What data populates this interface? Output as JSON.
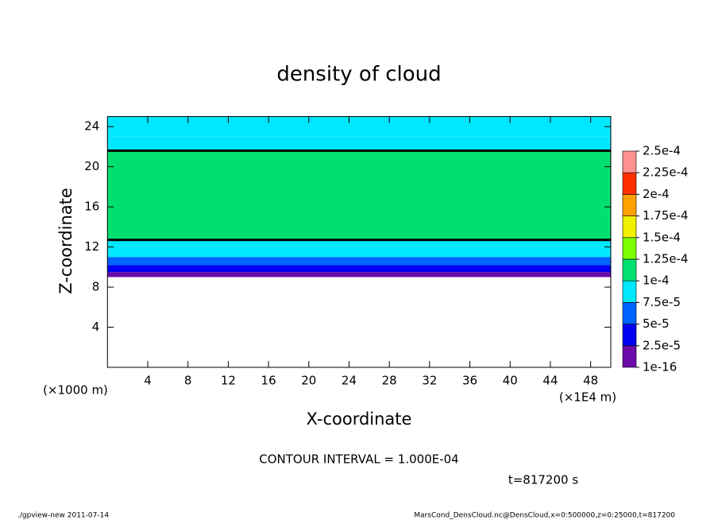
{
  "chart_data": {
    "type": "contour",
    "title": "density of cloud",
    "xlabel": "X-coordinate",
    "ylabel": "Z-coordinate",
    "x_unit": "(×1E4 m)",
    "y_unit": "(×1000 m)",
    "xlim": [
      0,
      50
    ],
    "xticks": [
      4,
      8,
      12,
      16,
      20,
      24,
      28,
      32,
      36,
      40,
      44,
      48
    ],
    "ylim": [
      0,
      25
    ],
    "yticks": [
      4,
      8,
      12,
      16,
      20,
      24
    ],
    "z_bins": [
      9,
      9.5,
      10.2,
      11,
      12,
      12.7,
      21.6,
      23,
      25
    ],
    "values": [
      1e-06,
      3e-05,
      6e-05,
      8e-05,
      9.5e-05,
      0.00011,
      9e-05,
      8e-05
    ],
    "contour_interval": {
      "value": 0.0001,
      "label": "CONTOUR INTERVAL = 1.000E-04"
    },
    "colorbar": {
      "ticks": [
        {
          "value": 1e-16,
          "label": "1e-16"
        },
        {
          "value": 2.5e-05,
          "label": "2.5e-5"
        },
        {
          "value": 5e-05,
          "label": "5e-5"
        },
        {
          "value": 7.5e-05,
          "label": "7.5e-5"
        },
        {
          "value": 0.0001,
          "label": "1e-4"
        },
        {
          "value": 0.000125,
          "label": "1.25e-4"
        },
        {
          "value": 0.00015,
          "label": "1.5e-4"
        },
        {
          "value": 0.000175,
          "label": "1.75e-4"
        },
        {
          "value": 0.0002,
          "label": "2e-4"
        },
        {
          "value": 0.000225,
          "label": "2.25e-4"
        },
        {
          "value": 0.00025,
          "label": "2.5e-4"
        }
      ],
      "colors": [
        "#6a0aa8",
        "#0000f0",
        "#0064ff",
        "#00e8ff",
        "#00e070",
        "#7cff00",
        "#f0f000",
        "#ffa000",
        "#ff3000",
        "#ff9090"
      ]
    },
    "time_label": "t=817200 s",
    "footer_left": "./gpview-new  2011-07-14",
    "footer_right": "MarsCond_DensCloud.nc@DensCloud,x=0:500000,z=0:25000,t=817200"
  }
}
